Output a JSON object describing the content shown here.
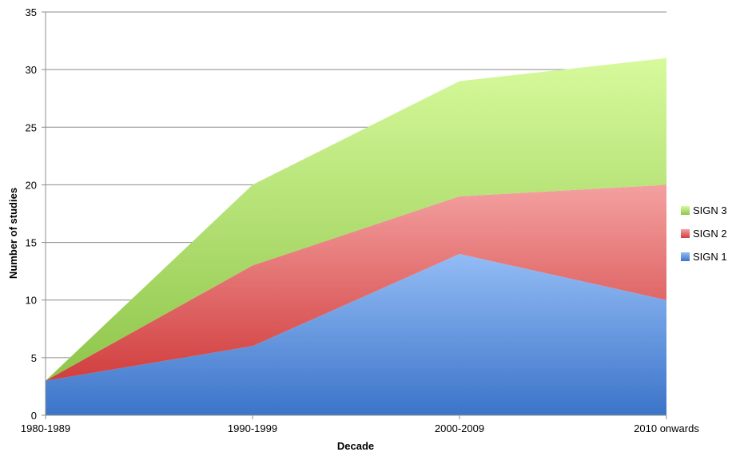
{
  "chart_data": {
    "type": "area",
    "stacked": true,
    "categories": [
      "1980-1989",
      "1990-1999",
      "2000-2009",
      "2010 onwards"
    ],
    "series": [
      {
        "name": "SIGN 1",
        "values": [
          3,
          6,
          14,
          10
        ],
        "color": "#6f9be4"
      },
      {
        "name": "SIGN 2",
        "values": [
          0,
          7,
          5,
          10
        ],
        "color": "#e57676"
      },
      {
        "name": "SIGN 3",
        "values": [
          0,
          7,
          10,
          11
        ],
        "color": "#bfe98a"
      }
    ],
    "xlabel": "Decade",
    "ylabel": "Number of studies",
    "ylim": [
      0,
      35
    ],
    "yticks": [
      0,
      5,
      10,
      15,
      20,
      25,
      30,
      35
    ],
    "grid": true,
    "legend": "right",
    "legend_order": [
      "SIGN 3",
      "SIGN 2",
      "SIGN 1"
    ]
  }
}
